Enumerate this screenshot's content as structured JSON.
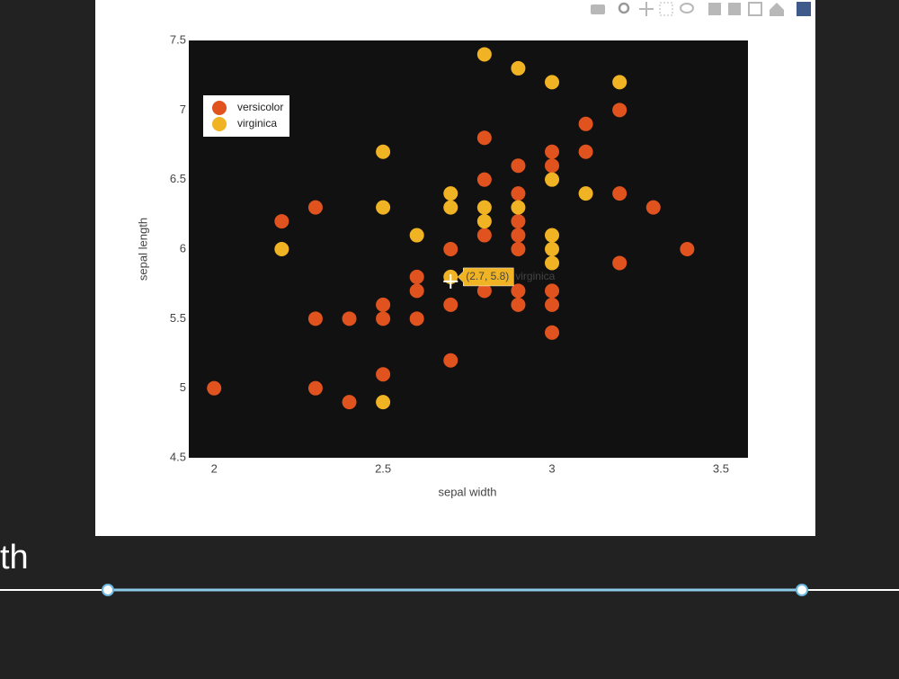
{
  "chart_data": {
    "type": "scatter",
    "xlabel": "sepal width",
    "ylabel": "sepal length",
    "xlim": [
      1.925,
      3.58
    ],
    "ylim": [
      4.5,
      7.5
    ],
    "xticks": [
      2,
      2.5,
      3,
      3.5
    ],
    "yticks": [
      4.5,
      5,
      5.5,
      6,
      6.5,
      7,
      7.5
    ],
    "legend_position": "upper-left",
    "series": [
      {
        "name": "versicolor",
        "color": "#e0531f",
        "x": [
          2.0,
          2.2,
          2.3,
          2.3,
          2.3,
          2.4,
          2.4,
          2.5,
          2.5,
          2.5,
          2.6,
          2.6,
          2.6,
          2.7,
          2.7,
          2.7,
          2.8,
          2.8,
          2.8,
          2.8,
          2.9,
          2.9,
          2.9,
          2.9,
          2.9,
          2.9,
          2.9,
          3.0,
          3.0,
          3.0,
          3.0,
          3.0,
          3.1,
          3.1,
          3.2,
          3.2,
          3.2,
          3.3,
          3.4
        ],
        "values": [
          5.0,
          6.2,
          6.3,
          5.5,
          5.0,
          5.5,
          4.9,
          5.6,
          5.5,
          5.1,
          5.8,
          5.7,
          5.5,
          6.0,
          5.6,
          5.2,
          6.8,
          6.5,
          6.1,
          5.7,
          6.6,
          6.4,
          6.2,
          6.1,
          6.0,
          5.7,
          5.6,
          6.7,
          6.6,
          5.7,
          5.6,
          5.4,
          6.9,
          6.7,
          7.0,
          6.4,
          5.9,
          6.3,
          6.0
        ]
      },
      {
        "name": "virginica",
        "color": "#f0b323",
        "x": [
          2.2,
          2.5,
          2.5,
          2.5,
          2.6,
          2.7,
          2.7,
          2.7,
          2.8,
          2.8,
          2.8,
          2.9,
          2.9,
          3.0,
          3.0,
          3.0,
          3.0,
          3.0,
          3.1,
          3.2
        ],
        "values": [
          6.0,
          6.7,
          6.3,
          4.9,
          6.1,
          6.4,
          6.3,
          5.8,
          7.4,
          6.3,
          6.2,
          7.3,
          6.3,
          7.2,
          6.5,
          6.1,
          6.0,
          5.9,
          6.4,
          7.2
        ]
      }
    ],
    "hover": {
      "text": "(2.7, 5.8)",
      "name": "virginica"
    }
  },
  "page": {
    "partial_label": "th"
  }
}
